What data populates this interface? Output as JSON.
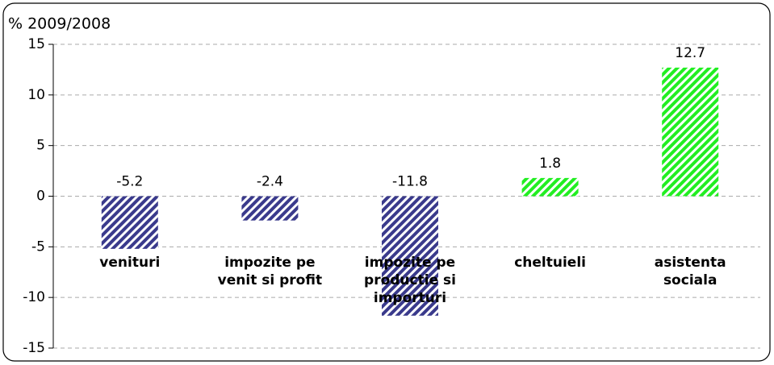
{
  "chart_data": {
    "type": "bar",
    "y_label": "% 2009/2008",
    "categories": [
      "venituri",
      "impozite pe venit si profit",
      "impozite pe productie si importuri",
      "cheltuieli",
      "asistenta sociala"
    ],
    "values": [
      -5.2,
      -2.4,
      -11.8,
      1.8,
      12.7
    ],
    "colors": [
      "#3a3a8c",
      "#3a3a8c",
      "#3a3a8c",
      "#22ee22",
      "#22ee22"
    ],
    "ylim": [
      -15,
      15
    ],
    "yticks": [
      -15,
      -10,
      -5,
      0,
      5,
      10,
      15
    ],
    "grid": true
  }
}
